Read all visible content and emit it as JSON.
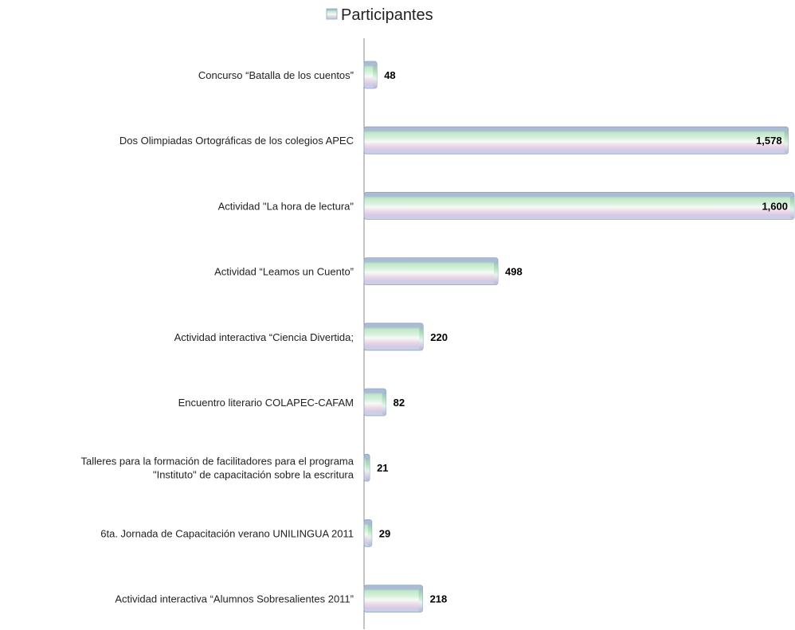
{
  "chart_data": {
    "type": "bar",
    "orientation": "horizontal",
    "legend": {
      "position": "top",
      "entries": [
        "Participantes"
      ]
    },
    "series": [
      {
        "name": "Participantes",
        "values": [
          48,
          1578,
          1600,
          498,
          220,
          82,
          21,
          29,
          218
        ],
        "value_labels": [
          "48",
          "1,578",
          "1,600",
          "498",
          "220",
          "82",
          "21",
          "29",
          "218"
        ]
      }
    ],
    "categories": [
      [
        "Concurso “Batalla de los cuentos”"
      ],
      [
        "Dos Olimpiadas  Ortográficas de los colegios APEC"
      ],
      [
        "Actividad \"La hora de lectura\""
      ],
      [
        "Actividad “Leamos un Cuento”"
      ],
      [
        "Actividad interactiva “Ciencia Divertida;"
      ],
      [
        "Encuentro literario COLAPEC-CAFAM"
      ],
      [
        "Talleres  para la formación de facilitadores para el programa",
        "\"Instituto\" de capacitación sobre la escritura"
      ],
      [
        "6ta.  Jornada de  Capacitación  verano UNILINGUA 2011"
      ],
      [
        "Actividad interactiva “Alumnos Sobresalientes 2011”"
      ]
    ],
    "xlim": [
      0,
      1600
    ],
    "grid": false
  },
  "colors": {
    "bar_top": "#9fb3cc",
    "bar_green": "#bfe8c6",
    "bar_light": "#eaf6ee",
    "bar_pink": "#e8cfe0",
    "bar_lilac": "#cbc6e6",
    "bar_edge": "#8ea7c2",
    "axis": "#888888"
  }
}
